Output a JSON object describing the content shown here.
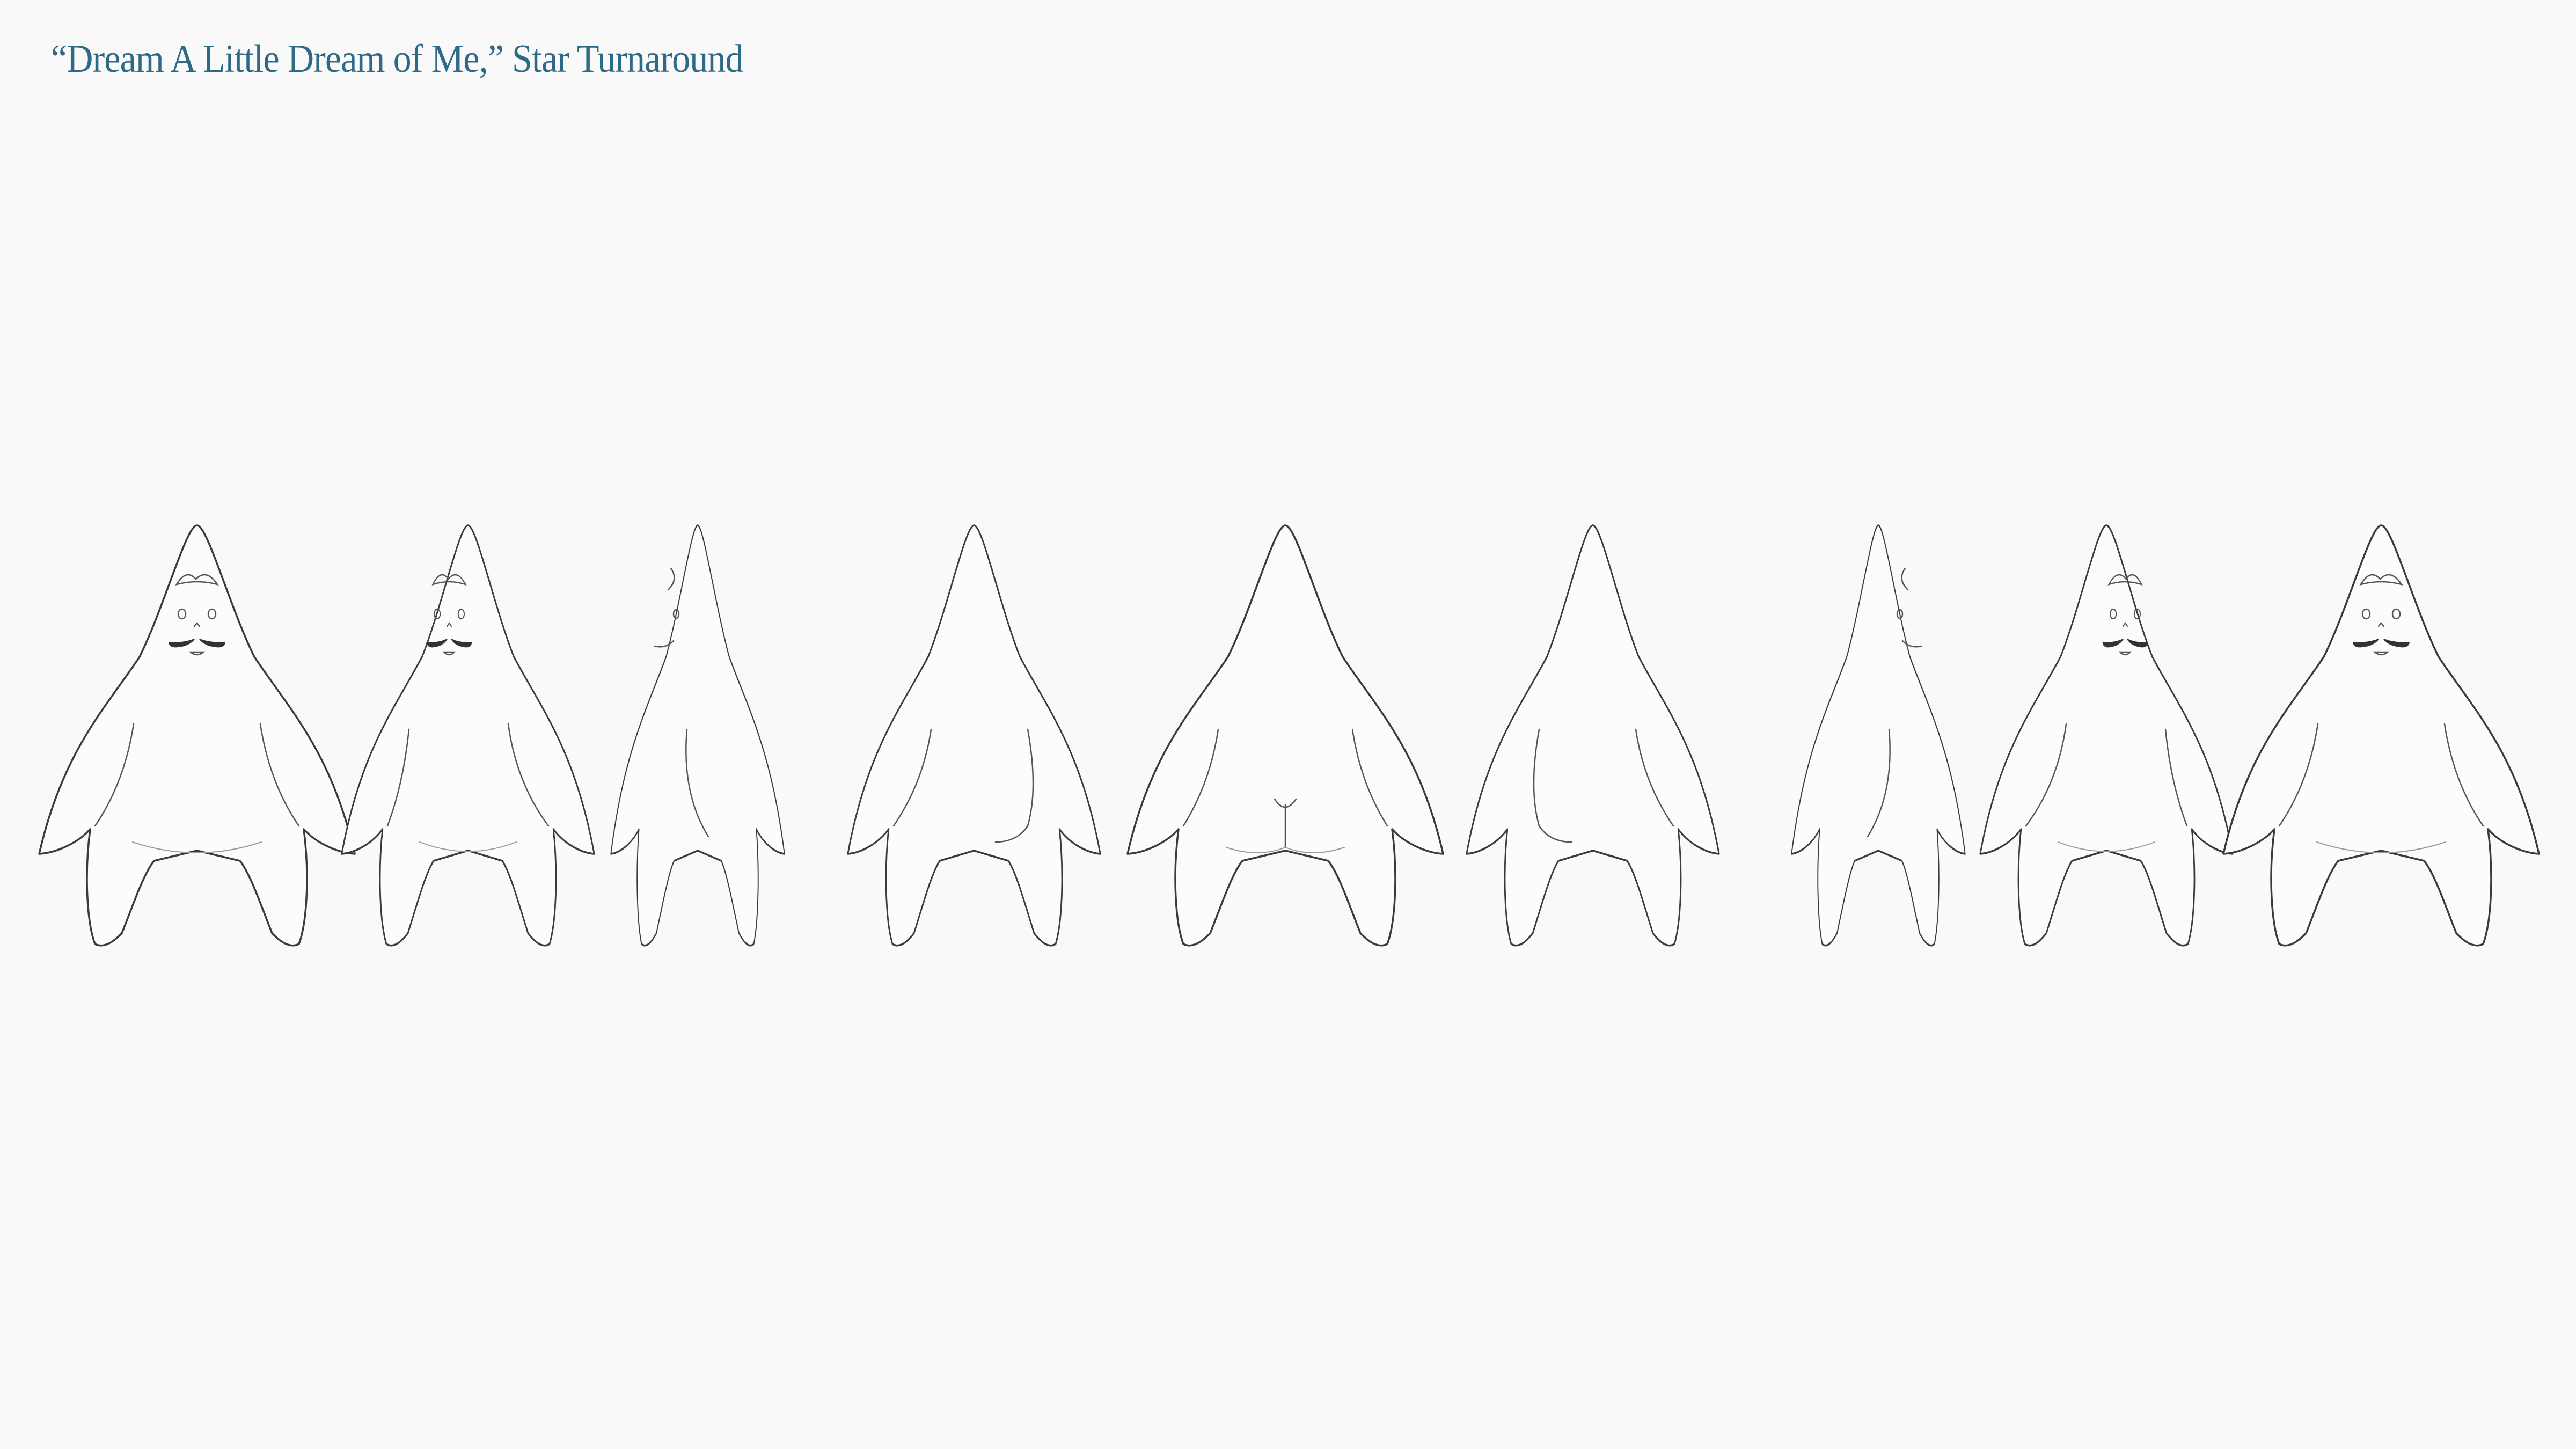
{
  "title": "“Dream A Little Dream of Me,” Star Turnaround",
  "colors": {
    "title": "#2e6a86",
    "background": "#f9f9f9",
    "line": "#3a3a3a"
  },
  "turnaround_views": [
    "front",
    "three-quarter-left",
    "side-left",
    "three-quarter-back-left",
    "back",
    "three-quarter-back-right",
    "side-right",
    "three-quarter-right",
    "front"
  ]
}
